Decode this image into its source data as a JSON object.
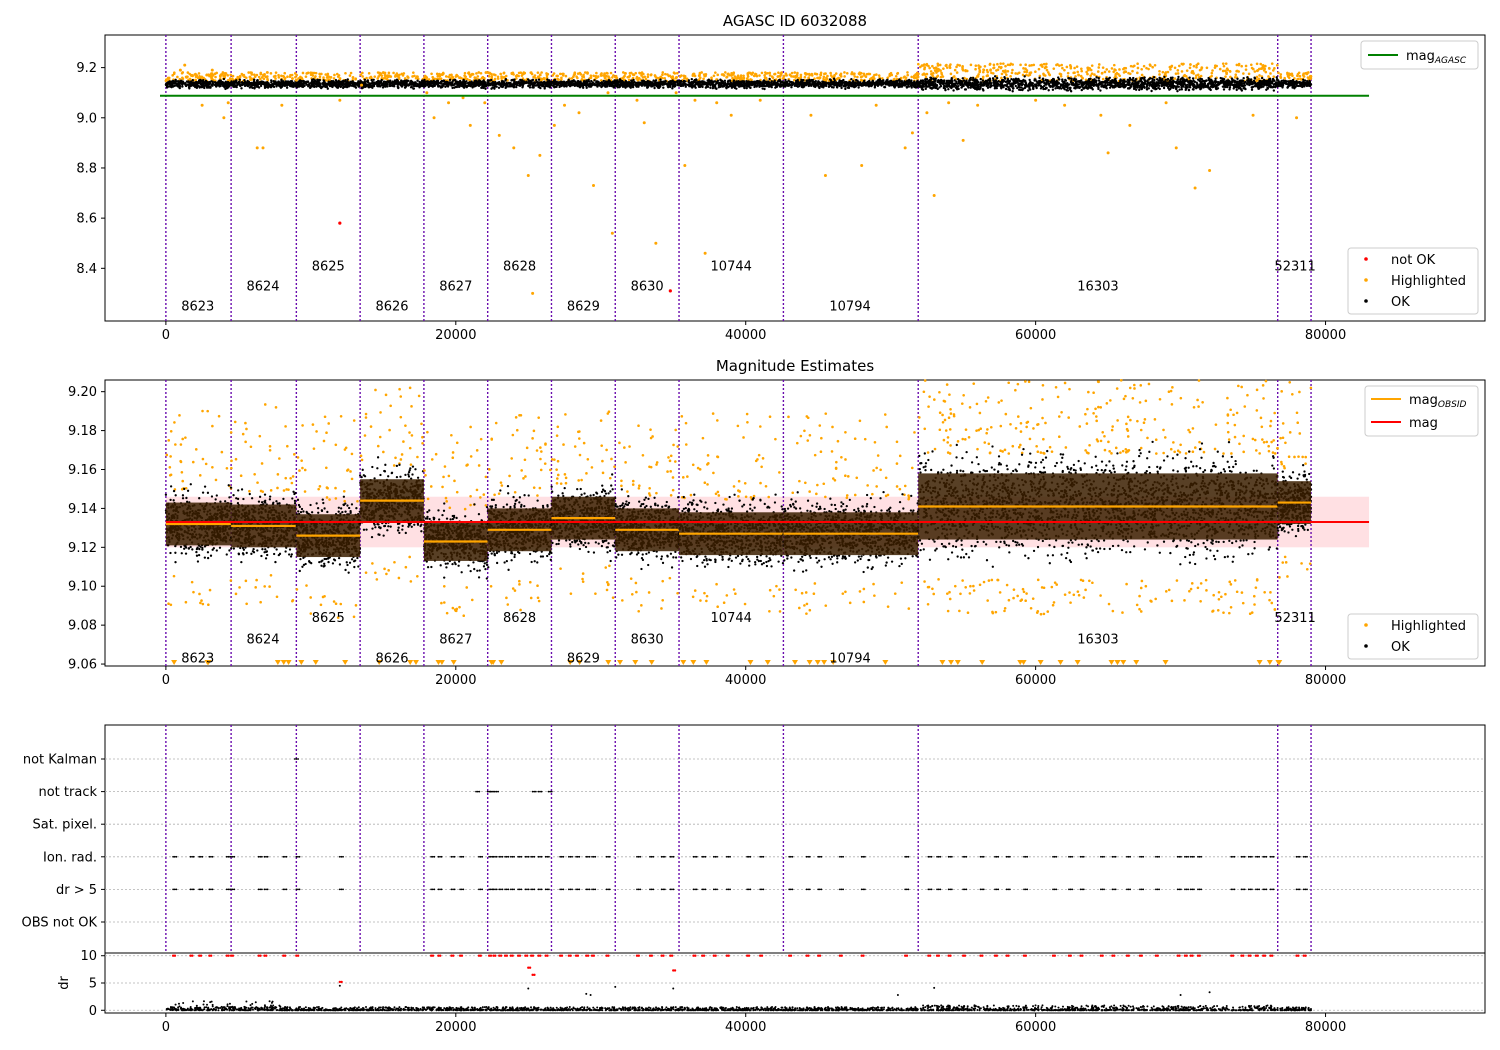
{
  "chart_data": [
    {
      "type": "scatter",
      "title": "AGASC ID 6032088",
      "xlim": [
        -4200,
        91000
      ],
      "ylim": [
        8.19,
        9.33
      ],
      "xticks": [
        0,
        20000,
        40000,
        60000,
        80000
      ],
      "yticks": [
        8.4,
        8.6,
        8.8,
        9.0,
        9.2
      ],
      "ytick_labels": [
        "8.4",
        "8.6",
        "8.8",
        "9.0",
        "9.2"
      ],
      "reference_line": {
        "label": "mag_AGASC",
        "value": 9.088,
        "x_end": 83000,
        "color": "#008000"
      },
      "series": [
        {
          "name": "not OK",
          "color": "#ff0000",
          "points": [
            [
              12000,
              8.58
            ],
            [
              34800,
              8.31
            ]
          ]
        },
        {
          "name": "Highlighted",
          "color": "#ffa500",
          "points": [
            [
              1000,
              9.19
            ],
            [
              1300,
              9.21
            ],
            [
              2500,
              9.05
            ],
            [
              3200,
              9.19
            ],
            [
              4000,
              9.0
            ],
            [
              4300,
              9.06
            ],
            [
              6300,
              8.88
            ],
            [
              6700,
              8.88
            ],
            [
              8000,
              9.05
            ],
            [
              9000,
              9.15
            ],
            [
              12000,
              9.07
            ],
            [
              13500,
              9.13
            ],
            [
              15000,
              9.18
            ],
            [
              18000,
              9.1
            ],
            [
              18500,
              9.0
            ],
            [
              19500,
              9.06
            ],
            [
              20500,
              9.08
            ],
            [
              21000,
              8.97
            ],
            [
              22000,
              9.06
            ],
            [
              23000,
              8.93
            ],
            [
              24000,
              8.88
            ],
            [
              25000,
              8.77
            ],
            [
              25300,
              8.3
            ],
            [
              25800,
              8.85
            ],
            [
              26800,
              8.97
            ],
            [
              27500,
              9.05
            ],
            [
              28500,
              9.02
            ],
            [
              29500,
              8.73
            ],
            [
              30500,
              9.1
            ],
            [
              30800,
              8.54
            ],
            [
              32500,
              9.07
            ],
            [
              33000,
              8.98
            ],
            [
              33800,
              8.5
            ],
            [
              35200,
              9.1
            ],
            [
              35800,
              8.81
            ],
            [
              36500,
              9.07
            ],
            [
              37200,
              8.46
            ],
            [
              38000,
              9.06
            ],
            [
              39000,
              9.01
            ],
            [
              41000,
              9.07
            ],
            [
              44500,
              9.01
            ],
            [
              45500,
              8.77
            ],
            [
              48000,
              8.81
            ],
            [
              49000,
              9.05
            ],
            [
              51000,
              8.88
            ],
            [
              51500,
              8.94
            ],
            [
              52500,
              9.02
            ],
            [
              53000,
              8.69
            ],
            [
              54000,
              9.06
            ],
            [
              55000,
              8.91
            ],
            [
              56000,
              9.05
            ],
            [
              60000,
              9.07
            ],
            [
              62000,
              9.05
            ],
            [
              64500,
              9.01
            ],
            [
              65000,
              8.86
            ],
            [
              66500,
              8.97
            ],
            [
              69000,
              9.06
            ],
            [
              69700,
              8.88
            ],
            [
              71000,
              8.72
            ],
            [
              72000,
              8.79
            ],
            [
              75000,
              9.01
            ],
            [
              78000,
              9.0
            ]
          ]
        },
        {
          "name": "OK",
          "color": "#000000",
          "band": {
            "from": 0,
            "to": 79000,
            "center": 9.135,
            "halfwidth": 0.022
          }
        }
      ],
      "obsids": [
        {
          "id": "8623",
          "start": 0,
          "end": 4500,
          "center": 2200,
          "label_y": 8.25
        },
        {
          "id": "8624",
          "start": 4500,
          "end": 9000,
          "center": 6700,
          "label_y": 8.33
        },
        {
          "id": "8625",
          "start": 9000,
          "end": 13400,
          "center": 11200,
          "label_y": 8.41
        },
        {
          "id": "8626",
          "start": 13400,
          "end": 17800,
          "center": 15600,
          "label_y": 8.25
        },
        {
          "id": "8627",
          "start": 17800,
          "end": 22200,
          "center": 20000,
          "label_y": 8.33
        },
        {
          "id": "8628",
          "start": 22200,
          "end": 26600,
          "center": 24400,
          "label_y": 8.41
        },
        {
          "id": "8629",
          "start": 26600,
          "end": 31000,
          "center": 28800,
          "label_y": 8.25
        },
        {
          "id": "8630",
          "start": 31000,
          "end": 35400,
          "center": 33200,
          "label_y": 8.33
        },
        {
          "id": "10744",
          "start": 35400,
          "end": 42600,
          "center": 39000,
          "label_y": 8.41
        },
        {
          "id": "10794",
          "start": 42600,
          "end": 51900,
          "center": 47200,
          "label_y": 8.25
        },
        {
          "id": "16303",
          "start": 51900,
          "end": 76700,
          "center": 64300,
          "label_y": 8.33
        },
        {
          "id": "52311",
          "start": 76700,
          "end": 79000,
          "center": 77900,
          "label_y": 8.41
        }
      ],
      "legend_upper": [
        "mag_AGASC"
      ],
      "legend_lower": [
        "not OK",
        "Highlighted",
        "OK"
      ]
    },
    {
      "type": "scatter",
      "title": "Magnitude Estimates",
      "xlim": [
        -4200,
        91000
      ],
      "ylim": [
        9.059,
        9.206
      ],
      "xticks": [
        0,
        20000,
        40000,
        60000,
        80000
      ],
      "yticks": [
        9.06,
        9.08,
        9.1,
        9.12,
        9.14,
        9.16,
        9.18,
        9.2
      ],
      "ytick_labels": [
        "9.06",
        "9.08",
        "9.10",
        "9.12",
        "9.14",
        "9.16",
        "9.18",
        "9.20"
      ],
      "mag": {
        "label": "mag",
        "value": 9.133,
        "band": [
          9.12,
          9.146
        ],
        "x_end": 83000,
        "color": "#ff0000"
      },
      "mag_obsid": {
        "label": "mag_OBSID",
        "color": "#ffa500",
        "segments": [
          {
            "obsid": "8623",
            "mean": 9.132,
            "std": 0.011
          },
          {
            "obsid": "8624",
            "mean": 9.131,
            "std": 0.011
          },
          {
            "obsid": "8625",
            "mean": 9.126,
            "std": 0.011
          },
          {
            "obsid": "8626",
            "mean": 9.144,
            "std": 0.011
          },
          {
            "obsid": "8627",
            "mean": 9.123,
            "std": 0.01
          },
          {
            "obsid": "8628",
            "mean": 9.129,
            "std": 0.011
          },
          {
            "obsid": "8629",
            "mean": 9.135,
            "std": 0.011
          },
          {
            "obsid": "8630",
            "mean": 9.129,
            "std": 0.011
          },
          {
            "obsid": "10744",
            "mean": 9.127,
            "std": 0.011
          },
          {
            "obsid": "10794",
            "mean": 9.127,
            "std": 0.011
          },
          {
            "obsid": "16303",
            "mean": 9.141,
            "std": 0.017
          },
          {
            "obsid": "52311",
            "mean": 9.143,
            "std": 0.011
          }
        ]
      },
      "obsid_label_y": [
        9.063,
        9.073,
        9.084,
        9.063,
        9.073,
        9.084,
        9.063,
        9.073,
        9.084,
        9.063,
        9.073,
        9.084
      ],
      "legend_upper": [
        "mag_OBSID",
        "mag"
      ],
      "legend_lower": [
        "Highlighted",
        "OK"
      ]
    },
    {
      "type": "scatter",
      "title": "",
      "xlim": [
        -4200,
        91000
      ],
      "flag_rows": [
        "not Kalman",
        "not track",
        "Sat. pixel.",
        "Ion. rad.",
        "dr > 5",
        "OBS not OK"
      ],
      "flags": {
        "not Kalman": [
          8900
        ],
        "not track": [
          21400,
          22200,
          22400,
          22700,
          25300,
          25700,
          26400
        ],
        "Sat. pixel.": [],
        "Ion. rad.": [
          500,
          1700,
          2300,
          3000,
          4200,
          4500,
          6400,
          6800,
          8100,
          9000,
          12000,
          18300,
          18800,
          19700,
          20300,
          21600,
          22300,
          22600,
          23000,
          23400,
          23800,
          24300,
          24800,
          25200,
          25700,
          26200,
          27200,
          27800,
          28300,
          29000,
          29400,
          30400,
          32500,
          33400,
          34200,
          34800,
          36400,
          37000,
          37800,
          38700,
          40100,
          41000,
          43000,
          44200,
          45000,
          46500,
          48000,
          51000,
          52600,
          53200,
          54000,
          55000,
          56200,
          57200,
          58000,
          59200,
          61200,
          62300,
          63100,
          64500,
          65300,
          66300,
          67200,
          68300,
          69800,
          70300,
          70700,
          71200,
          73500,
          74200,
          74700,
          75200,
          75700,
          76200,
          78000,
          78500
        ],
        "dr > 5": [
          500,
          1700,
          2300,
          3000,
          4200,
          4500,
          6400,
          6800,
          8100,
          9000,
          12000,
          18300,
          18800,
          19700,
          20300,
          21600,
          22300,
          22600,
          23000,
          23400,
          23800,
          24300,
          24800,
          25200,
          25700,
          26200,
          27200,
          27800,
          28300,
          29000,
          29400,
          30400,
          32500,
          33400,
          34200,
          34800,
          36400,
          37000,
          37800,
          38700,
          40100,
          41000,
          43000,
          44200,
          45000,
          46500,
          48000,
          51000,
          52600,
          53200,
          54000,
          55000,
          56200,
          57200,
          58000,
          59200,
          61200,
          62300,
          63100,
          64500,
          65300,
          66300,
          67200,
          68300,
          69800,
          70300,
          70700,
          71200,
          73500,
          74200,
          74700,
          75200,
          75700,
          76200,
          78000,
          78500
        ],
        "OBS not OK": []
      },
      "dr": {
        "ylabel": "dr",
        "ylim": [
          -0.5,
          10.5
        ],
        "yticks": [
          0,
          5,
          10
        ],
        "ytick_labels": [
          "0",
          "5",
          "10"
        ],
        "threshold": 5,
        "high_points_color": "#ff0000",
        "high_points": [
          [
            500,
            10
          ],
          [
            1700,
            10
          ],
          [
            2300,
            10
          ],
          [
            3000,
            10
          ],
          [
            4200,
            10
          ],
          [
            4500,
            10
          ],
          [
            6400,
            10
          ],
          [
            6800,
            10
          ],
          [
            8100,
            10
          ],
          [
            9000,
            10
          ],
          [
            12000,
            5.2
          ],
          [
            18300,
            10
          ],
          [
            18800,
            10
          ],
          [
            19700,
            10
          ],
          [
            20300,
            10
          ],
          [
            21600,
            10
          ],
          [
            22300,
            10
          ],
          [
            22600,
            10
          ],
          [
            23000,
            10
          ],
          [
            23400,
            10
          ],
          [
            23800,
            10
          ],
          [
            24300,
            10
          ],
          [
            24800,
            10
          ],
          [
            25200,
            10
          ],
          [
            25700,
            10
          ],
          [
            26200,
            10
          ],
          [
            25000,
            7.8
          ],
          [
            25300,
            6.5
          ],
          [
            27200,
            10
          ],
          [
            27800,
            10
          ],
          [
            28300,
            10
          ],
          [
            29000,
            10
          ],
          [
            29400,
            10
          ],
          [
            30400,
            10
          ],
          [
            32500,
            10
          ],
          [
            33400,
            10
          ],
          [
            34200,
            10
          ],
          [
            34800,
            10
          ],
          [
            35000,
            7.3
          ],
          [
            36400,
            10
          ],
          [
            37000,
            10
          ],
          [
            37800,
            10
          ],
          [
            38700,
            10
          ],
          [
            40100,
            10
          ],
          [
            41000,
            10
          ],
          [
            43000,
            10
          ],
          [
            44200,
            10
          ],
          [
            45000,
            10
          ],
          [
            46500,
            10
          ],
          [
            48000,
            10
          ],
          [
            51000,
            10
          ],
          [
            52600,
            10
          ],
          [
            53200,
            10
          ],
          [
            54000,
            10
          ],
          [
            55000,
            10
          ],
          [
            56200,
            10
          ],
          [
            57200,
            10
          ],
          [
            58000,
            10
          ],
          [
            59200,
            10
          ],
          [
            61200,
            10
          ],
          [
            62300,
            10
          ],
          [
            63100,
            10
          ],
          [
            64500,
            10
          ],
          [
            65300,
            10
          ],
          [
            66300,
            10
          ],
          [
            67200,
            10
          ],
          [
            68300,
            10
          ],
          [
            69800,
            10
          ],
          [
            70300,
            10
          ],
          [
            70700,
            10
          ],
          [
            71200,
            10
          ],
          [
            73500,
            10
          ],
          [
            74200,
            10
          ],
          [
            74700,
            10
          ],
          [
            75200,
            10
          ],
          [
            75700,
            10
          ],
          [
            76200,
            10
          ],
          [
            78000,
            10
          ],
          [
            78500,
            10
          ]
        ],
        "low_points_color": "#000000",
        "low_points": [
          [
            12000,
            4.5
          ],
          [
            25000,
            4.0
          ],
          [
            29000,
            3.0
          ],
          [
            29300,
            2.8
          ],
          [
            31000,
            4.3
          ],
          [
            35000,
            4.0
          ],
          [
            50500,
            2.8
          ],
          [
            53000,
            4.1
          ],
          [
            70000,
            2.8
          ],
          [
            72000,
            3.3
          ]
        ]
      }
    }
  ]
}
